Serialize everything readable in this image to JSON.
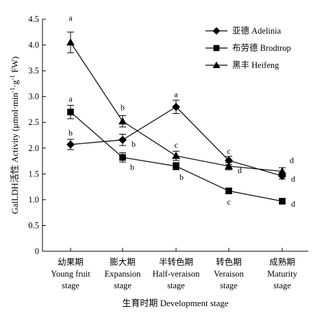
{
  "chart_data": {
    "type": "line",
    "xlabel": "生育时期 Development stage",
    "ylabel": "GalLDH活性 Activity (μmol·min⁻¹·g⁻¹ FW)",
    "ylabel_parts": {
      "prefix": "GalLDH活性 Activity (μmol·min",
      "sup1": "-1",
      "mid": "·g",
      "sup2": "-1",
      "suffix": " FW)"
    },
    "ylim": [
      0,
      4.5
    ],
    "yticks": [
      "0",
      "0.5",
      "1.0",
      "1.5",
      "2.0",
      "2.5",
      "3.0",
      "3.5",
      "4.0",
      "4.5"
    ],
    "grid": false,
    "legend_position": "top-right",
    "categories": [
      {
        "zh": "幼果期",
        "en1": "Young fruit",
        "en2": "stage"
      },
      {
        "zh": "膨大期",
        "en1": "Expansion",
        "en2": "stage"
      },
      {
        "zh": "半转色期",
        "en1": "Half-veraison",
        "en2": "stage"
      },
      {
        "zh": "转色期",
        "en1": "Veraison",
        "en2": "stage"
      },
      {
        "zh": "成熟期",
        "en1": "Maturity",
        "en2": "stage"
      }
    ],
    "series": [
      {
        "name": "亚德 Adelinia",
        "marker": "diamond",
        "values": [
          2.07,
          2.16,
          2.8,
          1.76,
          1.46
        ],
        "errors": [
          0.1,
          0.11,
          0.13,
          0.08,
          0.06
        ],
        "labels": [
          "b",
          "b",
          "a",
          "c",
          "d"
        ]
      },
      {
        "name": "布劳德 Brodtrop",
        "marker": "square",
        "values": [
          2.7,
          1.82,
          1.65,
          1.17,
          0.97
        ],
        "errors": [
          0.13,
          0.09,
          0.07,
          0.05,
          0.03
        ],
        "labels": [
          "a",
          "b",
          "b",
          "c",
          "d"
        ]
      },
      {
        "name": "黑丰 Heifeng",
        "marker": "triangle",
        "values": [
          4.05,
          2.52,
          1.85,
          1.65,
          1.55
        ],
        "errors": [
          0.2,
          0.11,
          0.09,
          0.07,
          0.07
        ],
        "labels": [
          "a",
          "b",
          "c",
          "d",
          "d"
        ]
      }
    ]
  }
}
